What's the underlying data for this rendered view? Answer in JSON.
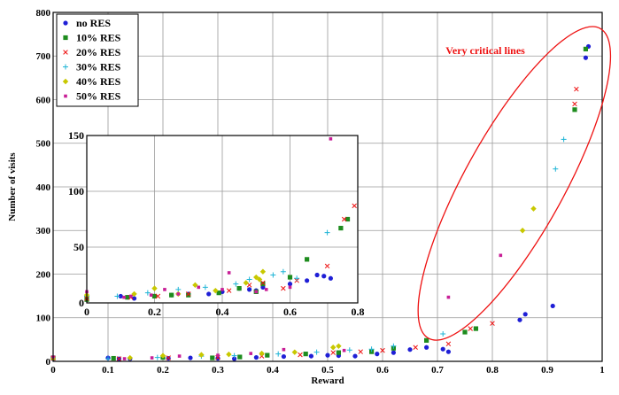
{
  "chart_data": [
    {
      "id": "main",
      "type": "scatter",
      "xlabel": "Reward",
      "ylabel": "Number of visits",
      "xlim": [
        0,
        1
      ],
      "ylim": [
        0,
        800
      ],
      "xticks": [
        0,
        0.1,
        0.2,
        0.3,
        0.4,
        0.5,
        0.6,
        0.7,
        0.8,
        0.9,
        1
      ],
      "yticks": [
        0,
        100,
        200,
        300,
        400,
        500,
        600,
        700,
        800
      ],
      "grid": true,
      "legend_position": "top-left",
      "annotation": {
        "text": "Very critical lines",
        "color": "#ee1111"
      },
      "series": [
        {
          "name": "no RES",
          "marker": "dot",
          "color": "#1f1fd6",
          "points": [
            [
              0.0,
              6
            ],
            [
              0.1,
              8
            ],
            [
              0.12,
              6
            ],
            [
              0.14,
              6
            ],
            [
              0.21,
              7
            ],
            [
              0.25,
              8
            ],
            [
              0.3,
              7
            ],
            [
              0.33,
              6
            ],
            [
              0.37,
              9
            ],
            [
              0.42,
              11
            ],
            [
              0.47,
              12
            ],
            [
              0.5,
              14
            ],
            [
              0.52,
              13
            ],
            [
              0.55,
              12
            ],
            [
              0.59,
              17
            ],
            [
              0.62,
              20
            ],
            [
              0.65,
              27
            ],
            [
              0.68,
              32
            ],
            [
              0.71,
              28
            ],
            [
              0.72,
              22
            ],
            [
              0.85,
              95
            ],
            [
              0.86,
              108
            ],
            [
              0.91,
              127
            ],
            [
              0.97,
              696
            ],
            [
              0.975,
              722
            ]
          ]
        },
        {
          "name": "10% RES",
          "marker": "square",
          "color": "#1e8c1e",
          "points": [
            [
              0.0,
              8
            ],
            [
              0.11,
              7
            ],
            [
              0.2,
              9
            ],
            [
              0.29,
              8
            ],
            [
              0.34,
              10
            ],
            [
              0.39,
              14
            ],
            [
              0.46,
              17
            ],
            [
              0.52,
              20
            ],
            [
              0.58,
              22
            ],
            [
              0.62,
              30
            ],
            [
              0.68,
              48
            ],
            [
              0.75,
              67
            ],
            [
              0.77,
              75
            ],
            [
              0.95,
              577
            ],
            [
              0.97,
              716
            ]
          ]
        },
        {
          "name": "20% RES",
          "marker": "x",
          "color": "#ee1111",
          "points": [
            [
              0.0,
              7
            ],
            [
              0.12,
              6
            ],
            [
              0.21,
              8
            ],
            [
              0.3,
              9
            ],
            [
              0.38,
              12
            ],
            [
              0.45,
              15
            ],
            [
              0.51,
              20
            ],
            [
              0.56,
              22
            ],
            [
              0.6,
              25
            ],
            [
              0.66,
              32
            ],
            [
              0.72,
              40
            ],
            [
              0.76,
              75
            ],
            [
              0.8,
              87
            ],
            [
              0.95,
              590
            ],
            [
              0.953,
              624
            ]
          ]
        },
        {
          "name": "30% RES",
          "marker": "plus",
          "color": "#1fb4d6",
          "points": [
            [
              0.0,
              9
            ],
            [
              0.1,
              6
            ],
            [
              0.19,
              9
            ],
            [
              0.27,
              12
            ],
            [
              0.33,
              13
            ],
            [
              0.41,
              17
            ],
            [
              0.48,
              21
            ],
            [
              0.54,
              26
            ],
            [
              0.58,
              28
            ],
            [
              0.62,
              35
            ],
            [
              0.71,
              63
            ],
            [
              0.915,
              441
            ],
            [
              0.93,
              509
            ]
          ]
        },
        {
          "name": "40% RES",
          "marker": "diamond",
          "color": "#c8c800",
          "points": [
            [
              0.0,
              7
            ],
            [
              0.14,
              8
            ],
            [
              0.2,
              13
            ],
            [
              0.27,
              15
            ],
            [
              0.32,
              16
            ],
            [
              0.38,
              18
            ],
            [
              0.44,
              21
            ],
            [
              0.51,
              32
            ],
            [
              0.52,
              35
            ],
            [
              0.855,
              300
            ],
            [
              0.875,
              350
            ]
          ]
        },
        {
          "name": "50% RES",
          "marker": "square-small",
          "color": "#c81e96",
          "points": [
            [
              0.0,
              10
            ],
            [
              0.13,
              6
            ],
            [
              0.18,
              8
            ],
            [
              0.23,
              12
            ],
            [
              0.3,
              14
            ],
            [
              0.36,
              18
            ],
            [
              0.42,
              27
            ],
            [
              0.53,
              25
            ],
            [
              0.72,
              147
            ],
            [
              0.815,
              243
            ]
          ]
        }
      ]
    },
    {
      "id": "inset",
      "type": "scatter",
      "xlim": [
        0,
        0.8
      ],
      "ylim": [
        0,
        150
      ],
      "xticks": [
        0,
        0.2,
        0.4,
        0.6,
        0.8
      ],
      "yticks": [
        0,
        50,
        100,
        150
      ],
      "grid": true,
      "series": [
        {
          "name": "no RES",
          "marker": "dot",
          "color": "#1f1fd6",
          "points": [
            [
              0.0,
              5
            ],
            [
              0.1,
              6
            ],
            [
              0.12,
              5
            ],
            [
              0.14,
              4
            ],
            [
              0.2,
              6
            ],
            [
              0.25,
              7
            ],
            [
              0.3,
              8
            ],
            [
              0.36,
              8
            ],
            [
              0.4,
              10
            ],
            [
              0.45,
              13
            ],
            [
              0.48,
              12
            ],
            [
              0.5,
              11
            ],
            [
              0.52,
              14
            ],
            [
              0.6,
              17
            ],
            [
              0.65,
              20
            ],
            [
              0.68,
              25
            ],
            [
              0.7,
              24
            ],
            [
              0.72,
              22
            ]
          ]
        },
        {
          "name": "10% RES",
          "marker": "square",
          "color": "#1e8c1e",
          "points": [
            [
              0.0,
              3
            ],
            [
              0.12,
              5
            ],
            [
              0.2,
              6
            ],
            [
              0.25,
              7
            ],
            [
              0.3,
              7
            ],
            [
              0.39,
              9
            ],
            [
              0.45,
              13
            ],
            [
              0.5,
              10
            ],
            [
              0.52,
              17
            ],
            [
              0.6,
              23
            ],
            [
              0.65,
              39
            ],
            [
              0.75,
              67
            ],
            [
              0.77,
              75
            ]
          ]
        },
        {
          "name": "20% RES",
          "marker": "x",
          "color": "#ee1111",
          "points": [
            [
              0.0,
              4
            ],
            [
              0.13,
              5
            ],
            [
              0.21,
              6
            ],
            [
              0.3,
              8
            ],
            [
              0.42,
              11
            ],
            [
              0.48,
              16
            ],
            [
              0.52,
              18
            ],
            [
              0.58,
              13
            ],
            [
              0.62,
              20
            ],
            [
              0.71,
              33
            ],
            [
              0.76,
              75
            ],
            [
              0.79,
              87
            ]
          ]
        },
        {
          "name": "30% RES",
          "marker": "plus",
          "color": "#1fb4d6",
          "points": [
            [
              0.0,
              6
            ],
            [
              0.09,
              6
            ],
            [
              0.18,
              9
            ],
            [
              0.27,
              12
            ],
            [
              0.35,
              14
            ],
            [
              0.44,
              17
            ],
            [
              0.48,
              21
            ],
            [
              0.55,
              25
            ],
            [
              0.58,
              28
            ],
            [
              0.62,
              22
            ],
            [
              0.71,
              63
            ]
          ]
        },
        {
          "name": "40% RES",
          "marker": "diamond",
          "color": "#c8c800",
          "points": [
            [
              0.0,
              7
            ],
            [
              0.14,
              8
            ],
            [
              0.2,
              13
            ],
            [
              0.27,
              8
            ],
            [
              0.32,
              16
            ],
            [
              0.38,
              11
            ],
            [
              0.47,
              18
            ],
            [
              0.5,
              23
            ],
            [
              0.51,
              21
            ],
            [
              0.52,
              28
            ]
          ]
        },
        {
          "name": "50% RES",
          "marker": "square-small",
          "color": "#c81e96",
          "points": [
            [
              0.0,
              10
            ],
            [
              0.11,
              5
            ],
            [
              0.13,
              6
            ],
            [
              0.19,
              7
            ],
            [
              0.23,
              12
            ],
            [
              0.27,
              8
            ],
            [
              0.33,
              14
            ],
            [
              0.4,
              12
            ],
            [
              0.42,
              27
            ],
            [
              0.5,
              10
            ],
            [
              0.53,
              12
            ],
            [
              0.6,
              14
            ],
            [
              0.72,
              147
            ]
          ]
        }
      ]
    }
  ]
}
